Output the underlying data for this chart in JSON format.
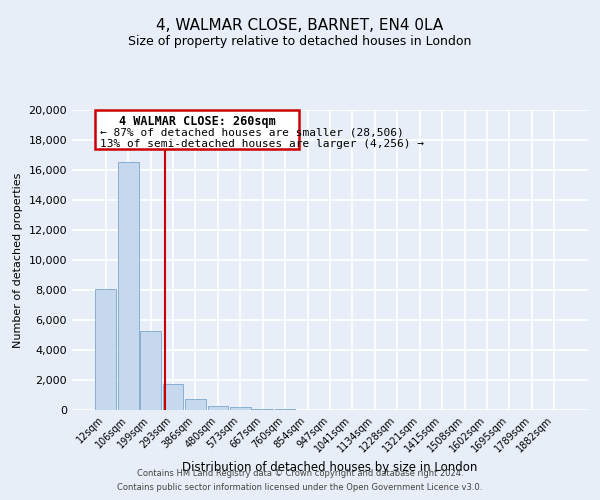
{
  "title": "4, WALMAR CLOSE, BARNET, EN4 0LA",
  "subtitle": "Size of property relative to detached houses in London",
  "xlabel": "Distribution of detached houses by size in London",
  "ylabel": "Number of detached properties",
  "bar_labels": [
    "12sqm",
    "106sqm",
    "199sqm",
    "293sqm",
    "386sqm",
    "480sqm",
    "573sqm",
    "667sqm",
    "760sqm",
    "854sqm",
    "947sqm",
    "1041sqm",
    "1134sqm",
    "1228sqm",
    "1321sqm",
    "1415sqm",
    "1508sqm",
    "1602sqm",
    "1695sqm",
    "1789sqm",
    "1882sqm"
  ],
  "bar_values": [
    8100,
    16500,
    5300,
    1750,
    750,
    300,
    200,
    100,
    50,
    0,
    0,
    0,
    0,
    0,
    0,
    0,
    0,
    0,
    0,
    0,
    0
  ],
  "bar_color": "#c5d8ee",
  "bar_edgecolor": "#7ba7c9",
  "vline_color": "#cc0000",
  "ylim": [
    0,
    20000
  ],
  "yticks": [
    0,
    2000,
    4000,
    6000,
    8000,
    10000,
    12000,
    14000,
    16000,
    18000,
    20000
  ],
  "annotation_title": "4 WALMAR CLOSE: 260sqm",
  "annotation_line1": "← 87% of detached houses are smaller (28,506)",
  "annotation_line2": "13% of semi-detached houses are larger (4,256) →",
  "annotation_box_color": "#cc0000",
  "footer1": "Contains HM Land Registry data © Crown copyright and database right 2024.",
  "footer2": "Contains public sector information licensed under the Open Government Licence v3.0.",
  "background_color": "#e8eef7",
  "grid_color": "#ffffff"
}
